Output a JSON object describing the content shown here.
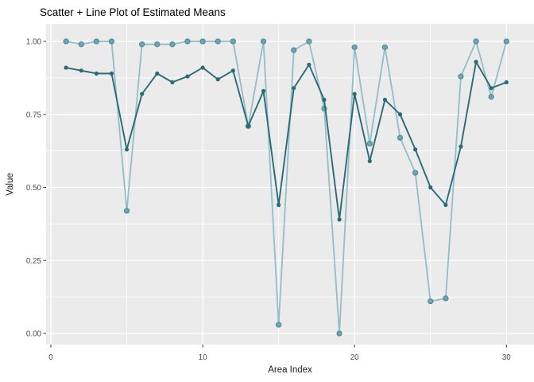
{
  "chart_data": {
    "type": "line",
    "title": "Scatter + Line Plot of Estimated Means",
    "xlabel": "Area Index",
    "ylabel": "Value",
    "x_ticks": [
      0,
      10,
      20,
      30
    ],
    "x_minor_ticks": [
      5,
      15,
      25
    ],
    "y_tick_labels": [
      "0.00",
      "0.25",
      "0.50",
      "0.75",
      "1.00"
    ],
    "y_tick_values": [
      0,
      0.25,
      0.5,
      0.75,
      1
    ],
    "y_minor_values": [
      0.125,
      0.375,
      0.625,
      0.875
    ],
    "xlim": [
      0,
      30
    ],
    "ylim": [
      0,
      1
    ],
    "grid": "major+minor",
    "legend": "none",
    "panel_bg": "#EBEBEB",
    "grid_color": "#FFFFFF",
    "axis_text_color": "#4D4D4D",
    "axis_title_color": "#1A1A1A",
    "tick_mark_color": "#333333",
    "x": [
      1,
      2,
      3,
      4,
      5,
      6,
      7,
      8,
      9,
      10,
      11,
      12,
      13,
      14,
      15,
      16,
      17,
      18,
      19,
      20,
      21,
      22,
      23,
      24,
      25,
      26,
      27,
      28,
      29,
      30
    ],
    "series": [
      {
        "name": "light-teal",
        "type": "line+points",
        "line_color": "#94BDC6",
        "point_color": "#6FA5B1",
        "point_edge_color": "#4F8C9D",
        "values": [
          1.0,
          0.99,
          1.0,
          1.0,
          0.42,
          0.99,
          0.99,
          0.99,
          1.0,
          1.0,
          1.0,
          1.0,
          0.71,
          1.0,
          0.03,
          0.97,
          1.0,
          0.77,
          0.0,
          0.98,
          0.65,
          0.98,
          0.67,
          0.55,
          0.11,
          0.12,
          0.88,
          1.0,
          0.81,
          1.0
        ]
      },
      {
        "name": "dark-teal",
        "type": "line+points",
        "line_color": "#2A6B78",
        "point_color": "#2A6B78",
        "point_edge_color": "#2A6B78",
        "values": [
          0.91,
          0.9,
          0.89,
          0.89,
          0.63,
          0.82,
          0.89,
          0.86,
          0.88,
          0.91,
          0.87,
          0.9,
          0.71,
          0.83,
          0.44,
          0.84,
          0.92,
          0.8,
          0.39,
          0.82,
          0.59,
          0.8,
          0.75,
          0.63,
          0.5,
          0.44,
          0.64,
          0.93,
          0.84,
          0.86
        ]
      }
    ]
  }
}
